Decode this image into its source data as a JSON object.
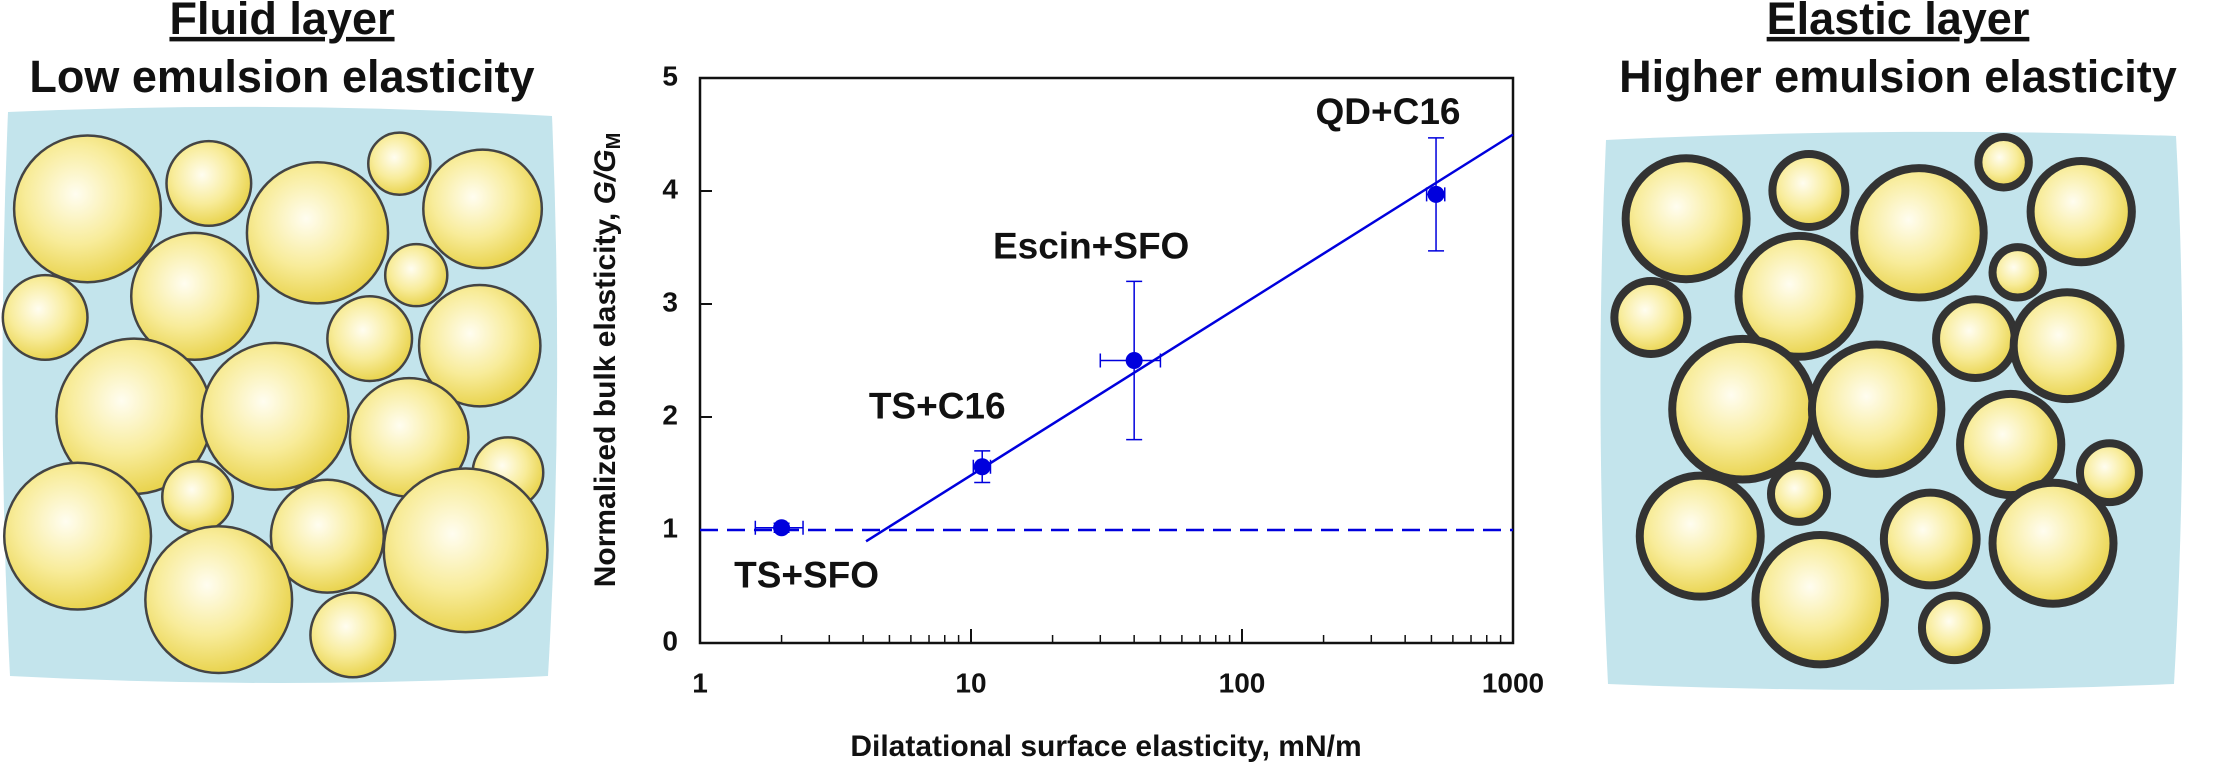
{
  "panels": [
    {
      "title": "Fluid layer",
      "subtitle": "Low emulsion elasticity"
    },
    {
      "title": "Elastic layer",
      "subtitle": "Higher emulsion elasticity"
    }
  ],
  "chart_data": {
    "type": "scatter",
    "x_label": "Dilatational surface elasticity, mN/m",
    "y_label": {
      "text": "Normalized bulk elasticity, ",
      "symbol": "G/G",
      "subscript": "M"
    },
    "xlim": [
      1,
      1000
    ],
    "xticks": [
      1,
      10,
      100,
      1000
    ],
    "log_x": true,
    "xminor_ticks": [
      2,
      3,
      4,
      5,
      6,
      7,
      8,
      9,
      20,
      30,
      40,
      50,
      60,
      70,
      80,
      90,
      200,
      300,
      400,
      500,
      600,
      700,
      800,
      900
    ],
    "ylim": [
      0,
      5
    ],
    "yticks": [
      0,
      1,
      2,
      3,
      4,
      5
    ],
    "series": [
      {
        "color": "#0000dd",
        "labels": [
          "TS+SFO",
          "TS+C16",
          "Escin+SFO",
          "QD+C16"
        ],
        "x": [
          2,
          11,
          40,
          520
        ],
        "values": [
          1.02,
          1.56,
          2.5,
          3.97
        ],
        "x_errors": [
          0.4,
          0.8,
          10,
          40
        ],
        "y_errors": [
          0.04,
          0.14,
          0.7,
          0.5
        ]
      }
    ],
    "fit_line": {
      "x": [
        4.1,
        1000
      ],
      "y": [
        0.9,
        4.5
      ],
      "color": "#0000dd"
    },
    "reference_line": {
      "y": 1,
      "color": "#0000dd"
    }
  }
}
